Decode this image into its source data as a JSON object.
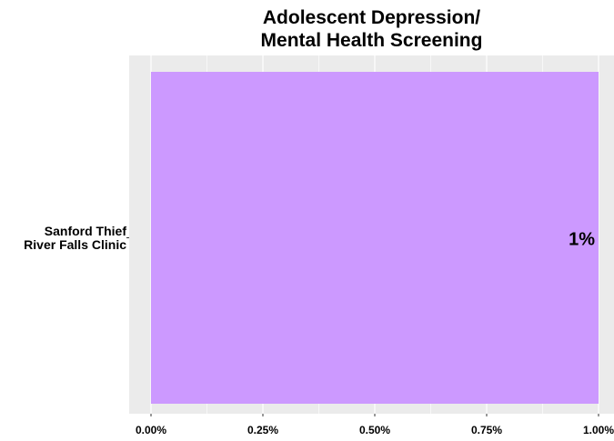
{
  "chart_data": {
    "type": "bar",
    "orientation": "horizontal",
    "title_lines": [
      "Adolescent Depression/",
      "Mental Health Screening"
    ],
    "categories": [
      [
        "Sanford Thief",
        "River Falls Clinic"
      ]
    ],
    "values": [
      0.01
    ],
    "value_labels": [
      "1%"
    ],
    "xlabel": "",
    "ylabel": "",
    "xlim": [
      0,
      0.01
    ],
    "x_ticks": [
      0,
      0.0025,
      0.005,
      0.0075,
      0.01
    ],
    "x_tick_labels": [
      "0.00%",
      "0.25%",
      "0.50%",
      "0.75%",
      "1.00%"
    ],
    "grid": true,
    "legend": "none",
    "bar_color": "#cc99ff",
    "panel_color": "#ebebeb",
    "grid_color": "#ffffff"
  }
}
